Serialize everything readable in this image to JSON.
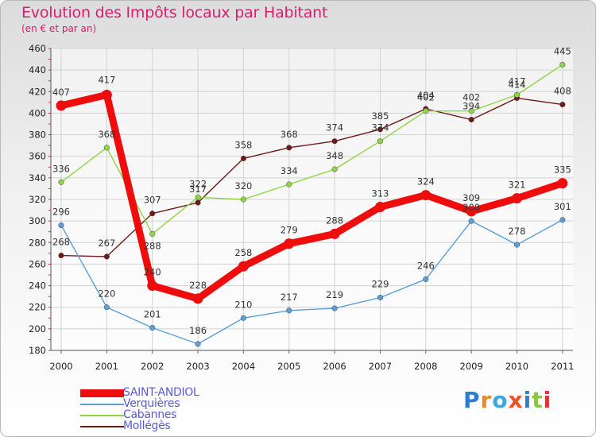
{
  "chart_data": {
    "type": "line",
    "title": "Evolution des Impôts locaux par Habitant",
    "subtitle": "(en € et par an)",
    "xlabel": "",
    "ylabel": "",
    "x": [
      "2000",
      "2001",
      "2002",
      "2003",
      "2004",
      "2005",
      "2006",
      "2007",
      "2008",
      "2009",
      "2010",
      "2011"
    ],
    "ylim": [
      180,
      460
    ],
    "ytick_step": 20,
    "grid": true,
    "legend_position": "bottom-left",
    "series": [
      {
        "name": "Mollégès",
        "color": "#6e1a1a",
        "values": [
          268,
          267,
          307,
          317,
          358,
          368,
          374,
          385,
          404,
          394,
          414,
          408
        ]
      },
      {
        "name": "Cabannes",
        "color": "#8fd645",
        "values": [
          336,
          368,
          288,
          322,
          320,
          334,
          348,
          374,
          402,
          402,
          417,
          445
        ]
      },
      {
        "name": "Verquières",
        "color": "#5a9fd6",
        "values": [
          296,
          220,
          201,
          186,
          210,
          217,
          219,
          229,
          246,
          300,
          278,
          301
        ]
      },
      {
        "name": "SAINT-ANDIOL",
        "color": "#ee0c0c",
        "values": [
          407,
          417,
          240,
          228,
          258,
          279,
          288,
          313,
          324,
          309,
          321,
          335
        ]
      }
    ]
  },
  "legend": [
    {
      "label": "SAINT-ANDIOL",
      "color": "#ee0c0c"
    },
    {
      "label": "Verquières",
      "color": "#5a9fd6"
    },
    {
      "label": "Cabannes",
      "color": "#8fd645"
    },
    {
      "label": "Mollégès",
      "color": "#6e1a1a"
    }
  ],
  "logo": {
    "text": "Proxiti",
    "letter_colors": [
      "#2a7fd4",
      "#ef8a1e",
      "#3aa9e0",
      "#f05020",
      "#2a7fd4",
      "#8cc63f",
      "#e83030"
    ]
  }
}
